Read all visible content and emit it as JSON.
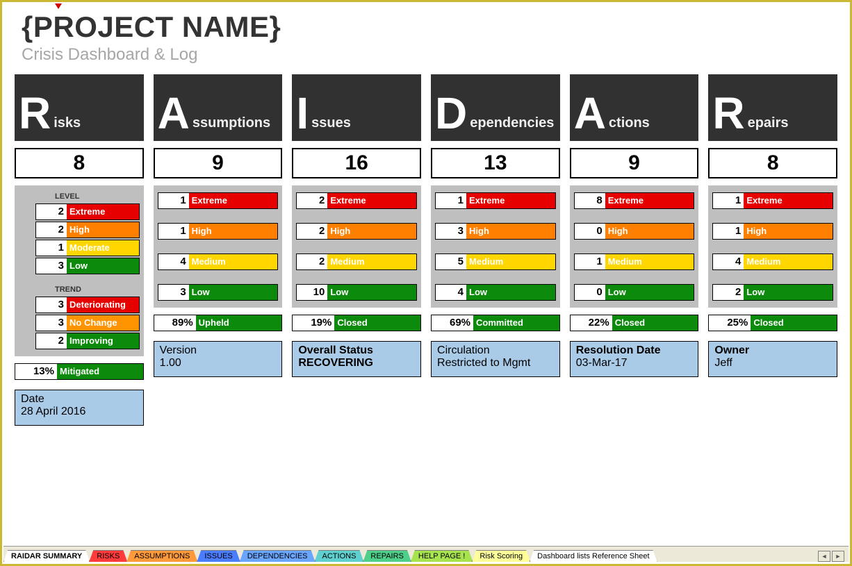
{
  "colors": {
    "extreme": "#e60000",
    "high": "#ff7f00",
    "moderate": "#ffd600",
    "medium": "#ffd600",
    "low": "#0b8a0b",
    "deteriorating": "#e60000",
    "nochange": "#ff9400",
    "improving": "#0b8a0b",
    "status": "#0b8a0b",
    "info_bg": "#a9cbe8"
  },
  "header": {
    "title": "{PROJECT NAME}",
    "subtitle": "Crisis Dashboard & Log"
  },
  "columns": [
    {
      "big": "R",
      "rest": "isks",
      "count": "8",
      "sections": [
        {
          "label": "LEVEL",
          "rows": [
            {
              "n": "2",
              "t": "Extreme",
              "c": "extreme"
            },
            {
              "n": "2",
              "t": "High",
              "c": "high"
            },
            {
              "n": "1",
              "t": "Moderate",
              "c": "moderate"
            },
            {
              "n": "3",
              "t": "Low",
              "c": "low"
            }
          ]
        },
        {
          "label": "TREND",
          "rows": [
            {
              "n": "3",
              "t": "Deteriorating",
              "c": "deteriorating"
            },
            {
              "n": "3",
              "t": "No Change",
              "c": "nochange"
            },
            {
              "n": "2",
              "t": "Improving",
              "c": "improving"
            }
          ]
        }
      ],
      "status": {
        "pct": "13%",
        "t": "Mitigated"
      },
      "info": {
        "k": "Date",
        "v": "28 April 2016"
      }
    },
    {
      "big": "A",
      "rest": "ssumptions",
      "count": "9",
      "sections": [
        {
          "rows": [
            {
              "n": "1",
              "t": "Extreme",
              "c": "extreme"
            },
            {
              "gap": true
            },
            {
              "n": "1",
              "t": "High",
              "c": "high"
            },
            {
              "gap": true
            },
            {
              "n": "4",
              "t": "Medium",
              "c": "medium"
            },
            {
              "gap": true
            },
            {
              "n": "3",
              "t": "Low",
              "c": "low"
            }
          ]
        }
      ],
      "status": {
        "pct": "89%",
        "t": "Upheld"
      },
      "info": {
        "k": "Version",
        "v": "1.00"
      }
    },
    {
      "big": "I",
      "rest": "ssues",
      "count": "16",
      "sections": [
        {
          "rows": [
            {
              "n": "2",
              "t": "Extreme",
              "c": "extreme"
            },
            {
              "gap": true
            },
            {
              "n": "2",
              "t": "High",
              "c": "high"
            },
            {
              "gap": true
            },
            {
              "n": "2",
              "t": "Medium",
              "c": "medium"
            },
            {
              "gap": true
            },
            {
              "n": "10",
              "t": "Low",
              "c": "low"
            }
          ]
        }
      ],
      "status": {
        "pct": "19%",
        "t": "Closed"
      },
      "info": {
        "k": "Overall Status",
        "v": "RECOVERING",
        "bold": true
      }
    },
    {
      "big": "D",
      "rest": "ependencies",
      "count": "13",
      "sections": [
        {
          "rows": [
            {
              "n": "1",
              "t": "Extreme",
              "c": "extreme"
            },
            {
              "gap": true
            },
            {
              "n": "3",
              "t": "High",
              "c": "high"
            },
            {
              "gap": true
            },
            {
              "n": "5",
              "t": "Medium",
              "c": "medium"
            },
            {
              "gap": true
            },
            {
              "n": "4",
              "t": "Low",
              "c": "low"
            }
          ]
        }
      ],
      "status": {
        "pct": "69%",
        "t": "Committed"
      },
      "info": {
        "k": "Circulation",
        "v": "Restricted to Mgmt"
      }
    },
    {
      "big": "A",
      "rest": "ctions",
      "count": "9",
      "sections": [
        {
          "rows": [
            {
              "n": "8",
              "t": "Extreme",
              "c": "extreme"
            },
            {
              "gap": true
            },
            {
              "n": "0",
              "t": "High",
              "c": "high"
            },
            {
              "gap": true
            },
            {
              "n": "1",
              "t": "Medium",
              "c": "medium"
            },
            {
              "gap": true
            },
            {
              "n": "0",
              "t": "Low",
              "c": "low"
            }
          ]
        }
      ],
      "status": {
        "pct": "22%",
        "t": "Closed"
      },
      "info": {
        "k": "Resolution Date",
        "v": "03-Mar-17",
        "kbold": true
      }
    },
    {
      "big": "R",
      "rest": "epairs",
      "count": "8",
      "sections": [
        {
          "rows": [
            {
              "n": "1",
              "t": "Extreme",
              "c": "extreme"
            },
            {
              "gap": true
            },
            {
              "n": "1",
              "t": "High",
              "c": "high"
            },
            {
              "gap": true
            },
            {
              "n": "4",
              "t": "Medium",
              "c": "medium"
            },
            {
              "gap": true
            },
            {
              "n": "2",
              "t": "Low",
              "c": "low"
            }
          ]
        }
      ],
      "status": {
        "pct": "25%",
        "t": "Closed"
      },
      "info": {
        "k": "Owner",
        "v": "Jeff",
        "kbold": true
      }
    }
  ],
  "tabs": [
    {
      "label": "RAIDAR SUMMARY",
      "bg": "#ffffff",
      "active": true
    },
    {
      "label": "RISKS",
      "bg": "#ff3b3b"
    },
    {
      "label": "ASSUMPTIONS",
      "bg": "#ff9a3b"
    },
    {
      "label": "ISSUES",
      "bg": "#4a7dff"
    },
    {
      "label": "DEPENDENCIES",
      "bg": "#6aa6ff"
    },
    {
      "label": "ACTIONS",
      "bg": "#5fd0d0"
    },
    {
      "label": "REPAIRS",
      "bg": "#4fd08a"
    },
    {
      "label": "HELP PAGE !",
      "bg": "#a7e34f"
    },
    {
      "label": "Risk Scoring",
      "bg": "#ffff99"
    },
    {
      "label": "Dashboard lists Reference Sheet",
      "bg": "#ffffff"
    }
  ]
}
